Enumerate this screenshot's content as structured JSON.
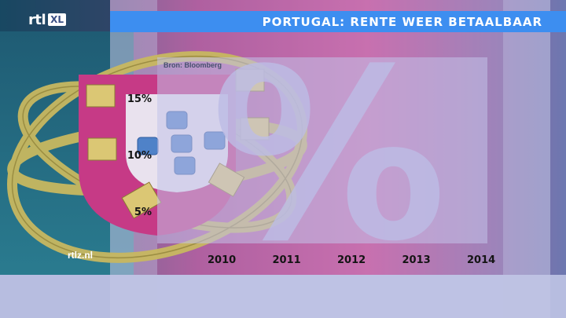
{
  "broadcast": {
    "logo_main": "rtl",
    "logo_badge": "XL",
    "title": "PORTUGAL: RENTE WEER BETAALBAAR",
    "source": "Bron: Bloomberg",
    "website": "rtlz.nl"
  },
  "background": {
    "large_symbol": "%",
    "emblem": "portuguese-coat-of-arms"
  },
  "colors": {
    "title_bar": "#3d8ef0",
    "panel": "#b8bee3",
    "emblem_shield_pink": "#c63a86",
    "emblem_gold": "#c8b860"
  },
  "chart_data": {
    "type": "line",
    "title": "PORTUGAL: RENTE WEER BETAALBAAR",
    "source": "Bron: Bloomberg",
    "x": [
      2010,
      2011,
      2012,
      2013,
      2014
    ],
    "x_tick_labels": [
      "2010",
      "2011",
      "2012",
      "2013",
      "2014"
    ],
    "y_tick_labels": [
      "15%",
      "10%",
      "5%"
    ],
    "y_ticks": [
      15,
      10,
      5
    ],
    "ylim": [
      2,
      18
    ],
    "series": [],
    "grid": false
  }
}
